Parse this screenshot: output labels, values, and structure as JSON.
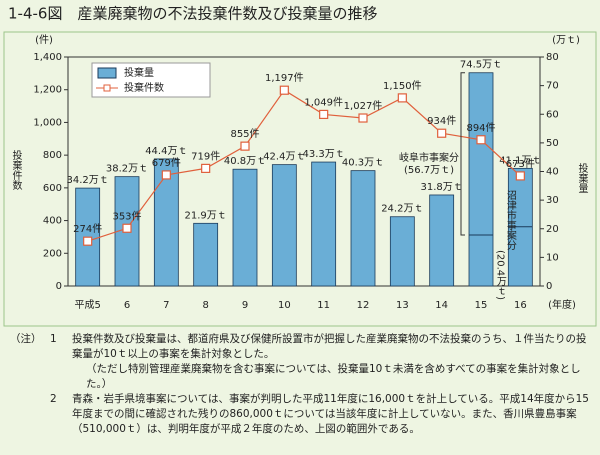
{
  "chart_data": {
    "type": "bar-line",
    "title": "1-4-6図　産業廃棄物の不法投棄件数及び投棄量の推移",
    "ylabel_unit": "(件)",
    "ylabel": "投棄件数",
    "y2label_unit": "(万ｔ)",
    "y2label": "投棄量",
    "xlabel": "(年度)",
    "categories": [
      "平成5",
      "6",
      "7",
      "8",
      "9",
      "10",
      "11",
      "12",
      "13",
      "14",
      "15",
      "16"
    ],
    "ylim": [
      0,
      1400
    ],
    "yticks": [
      0,
      200,
      400,
      600,
      800,
      {
        "value": 1000,
        "label": "1,000"
      },
      {
        "value": 1200,
        "label": "1,200"
      },
      {
        "value": 1400,
        "label": "1,400"
      }
    ],
    "y2lim": [
      0,
      80
    ],
    "y2ticks": [
      0,
      10,
      20,
      30,
      40,
      50,
      60,
      70,
      80
    ],
    "legend": "top-left",
    "series": [
      {
        "name": "投棄量",
        "type": "bar",
        "axis": "y2",
        "color": "#6aaed6",
        "values": [
          34.2,
          38.2,
          44.4,
          21.9,
          40.8,
          42.4,
          43.3,
          40.3,
          24.2,
          31.8,
          74.5,
          41.1
        ],
        "value_labels": [
          "34.2万ｔ",
          "38.2万ｔ",
          "44.4万ｔ",
          "21.9万ｔ",
          "40.8万ｔ",
          "42.4万ｔ",
          "43.3万ｔ",
          "40.3万ｔ",
          "24.2万ｔ",
          "31.8万ｔ",
          "74.5万ｔ",
          "41.1万ｔ"
        ]
      },
      {
        "name": "投棄件数",
        "type": "line",
        "axis": "y",
        "color": "#e0603c",
        "values": [
          274,
          353,
          679,
          719,
          855,
          1197,
          1049,
          1027,
          1150,
          934,
          894,
          673
        ],
        "value_labels": [
          "274件",
          "353件",
          "679件",
          "719件",
          "855件",
          "1,197件",
          "1,049件",
          "1,027件",
          "1,150件",
          "934件",
          "894件",
          "673件"
        ]
      }
    ],
    "annotations": [
      {
        "category": "15",
        "text": "岐阜市事案分",
        "value_label": "(56.7万ｔ)",
        "value": 56.7
      },
      {
        "category": "16",
        "text": "沼津市事案分",
        "value_label": "(20.4万ｔ)",
        "value": 20.4
      }
    ]
  },
  "notes": {
    "label": "（注）",
    "items": [
      {
        "number": "1",
        "text": "投棄件数及び投棄量は、都道府県及び保健所設置市が把握した産業廃棄物の不法投棄のうち、１件当たりの投棄量が10ｔ以上の事案を集計対象とした。",
        "sub": "（ただし特別管理産業廃棄物を含む事案については、投棄量10ｔ未満を含めすべての事案を集計対象とした。）"
      },
      {
        "number": "2",
        "text": "青森・岩手県境事案については、事案が判明した平成11年度に16,000ｔを計上している。平成14年度から15年度までの間に確認された残りの860,000ｔについては当該年度に計上していない。また、香川県豊島事案（510,000ｔ）は、判明年度が平成２年度のため、上図の範囲外である。"
      }
    ]
  }
}
